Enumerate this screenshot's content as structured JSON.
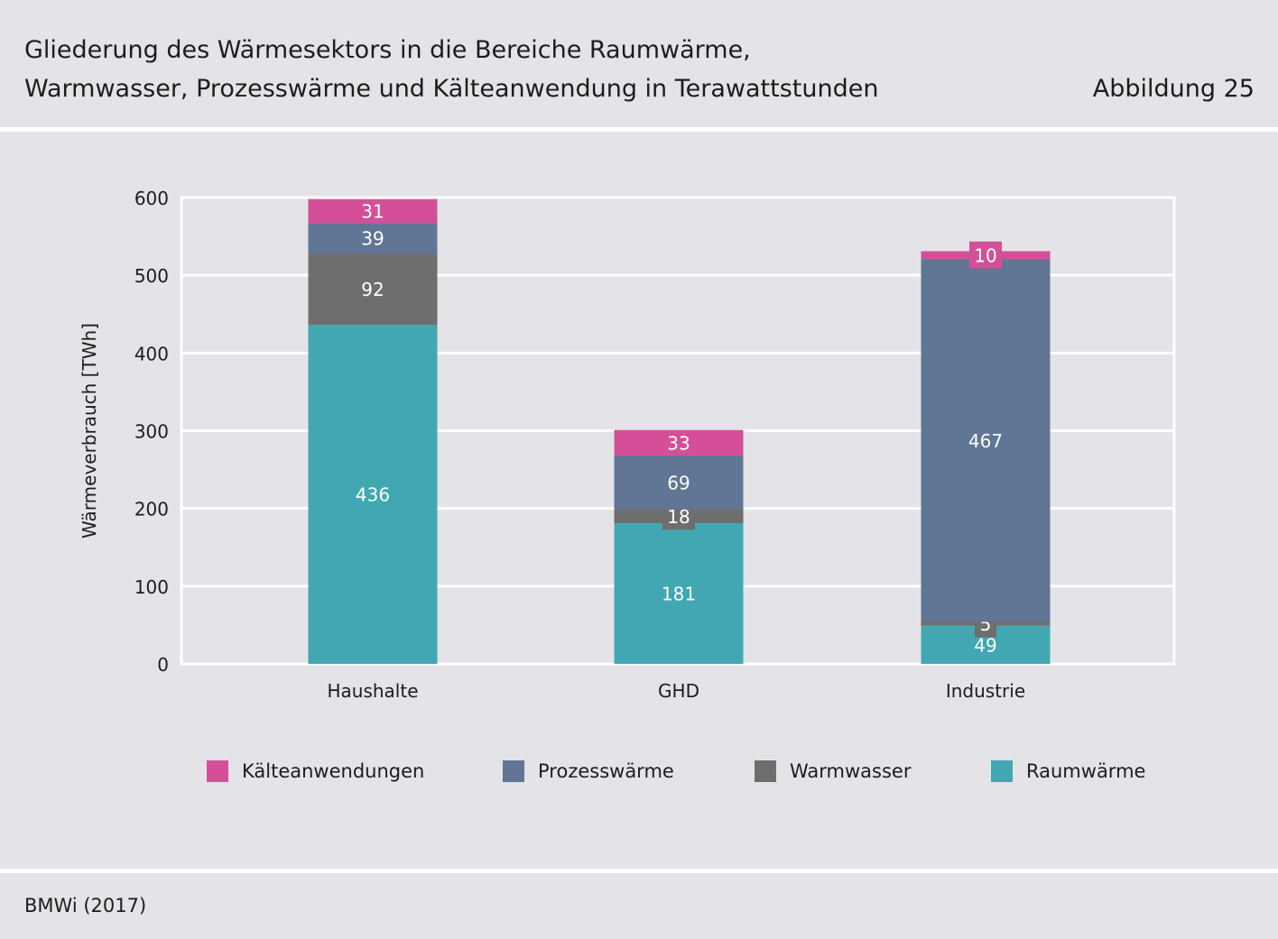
{
  "header": {
    "title_line1": "Gliederung des Wärmesektors in die Bereiche Raumwärme,",
    "title_line2": "Warmwasser, Prozesswärme und Kälteanwendung in Terawattstunden",
    "figure_label": "Abbildung 25"
  },
  "footer": {
    "source": "BMWi (2017)"
  },
  "chart_data": {
    "type": "bar",
    "stacked": true,
    "categories": [
      "Haushalte",
      "GHD",
      "Industrie"
    ],
    "ylabel": "Wärmeverbrauch [TWh]",
    "xlabel": "",
    "ylim": [
      0,
      600
    ],
    "yticks": [
      0,
      100,
      200,
      300,
      400,
      500,
      600
    ],
    "grid": true,
    "legend_position": "bottom",
    "series": [
      {
        "name": "Raumwärme",
        "color": "#41a8b3",
        "values": [
          436,
          181,
          49
        ]
      },
      {
        "name": "Warmwasser",
        "color": "#6e6e6e",
        "values": [
          92,
          18,
          5
        ]
      },
      {
        "name": "Prozesswärme",
        "color": "#617595",
        "values": [
          39,
          69,
          467
        ]
      },
      {
        "name": "Kälteanwendungen",
        "color": "#d44f98",
        "values": [
          31,
          33,
          10
        ]
      }
    ],
    "legend_order": [
      "Kälteanwendungen",
      "Prozesswärme",
      "Warmwasser",
      "Raumwärme"
    ]
  }
}
